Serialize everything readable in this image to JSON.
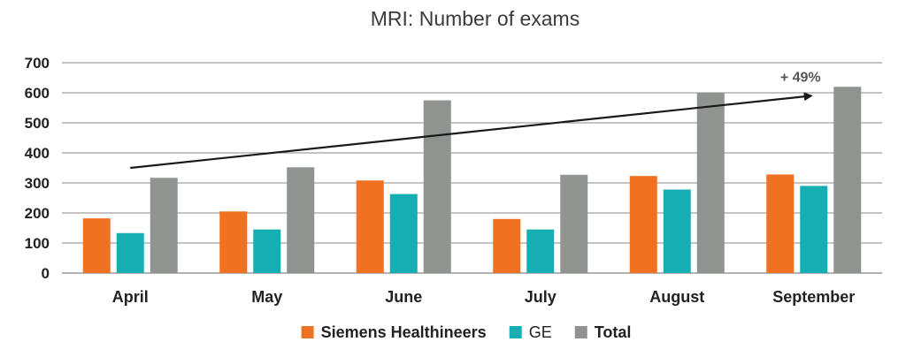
{
  "chart_data": {
    "type": "bar",
    "title": "MRI: Number of exams",
    "xlabel": "",
    "ylabel": "",
    "categories": [
      "April",
      "May",
      "June",
      "July",
      "August",
      "September"
    ],
    "series": [
      {
        "name": "Siemens Healthineers",
        "color": "#f07122",
        "values": [
          182,
          205,
          308,
          180,
          323,
          328
        ]
      },
      {
        "name": "GE",
        "color": "#15aeb2",
        "values": [
          133,
          145,
          263,
          145,
          278,
          290
        ]
      },
      {
        "name": "Total",
        "color": "#8f9491",
        "values": [
          317,
          352,
          575,
          327,
          601,
          620
        ]
      }
    ],
    "ylim": [
      0,
      700
    ],
    "yticks": [
      0,
      100,
      200,
      300,
      400,
      500,
      600,
      700
    ],
    "grid": true,
    "legend": "bottom",
    "annotation": {
      "text": "+ 49%",
      "arrow_from": {
        "category": "April",
        "value": 350
      },
      "arrow_to": {
        "category": "September",
        "value": 590
      }
    }
  }
}
